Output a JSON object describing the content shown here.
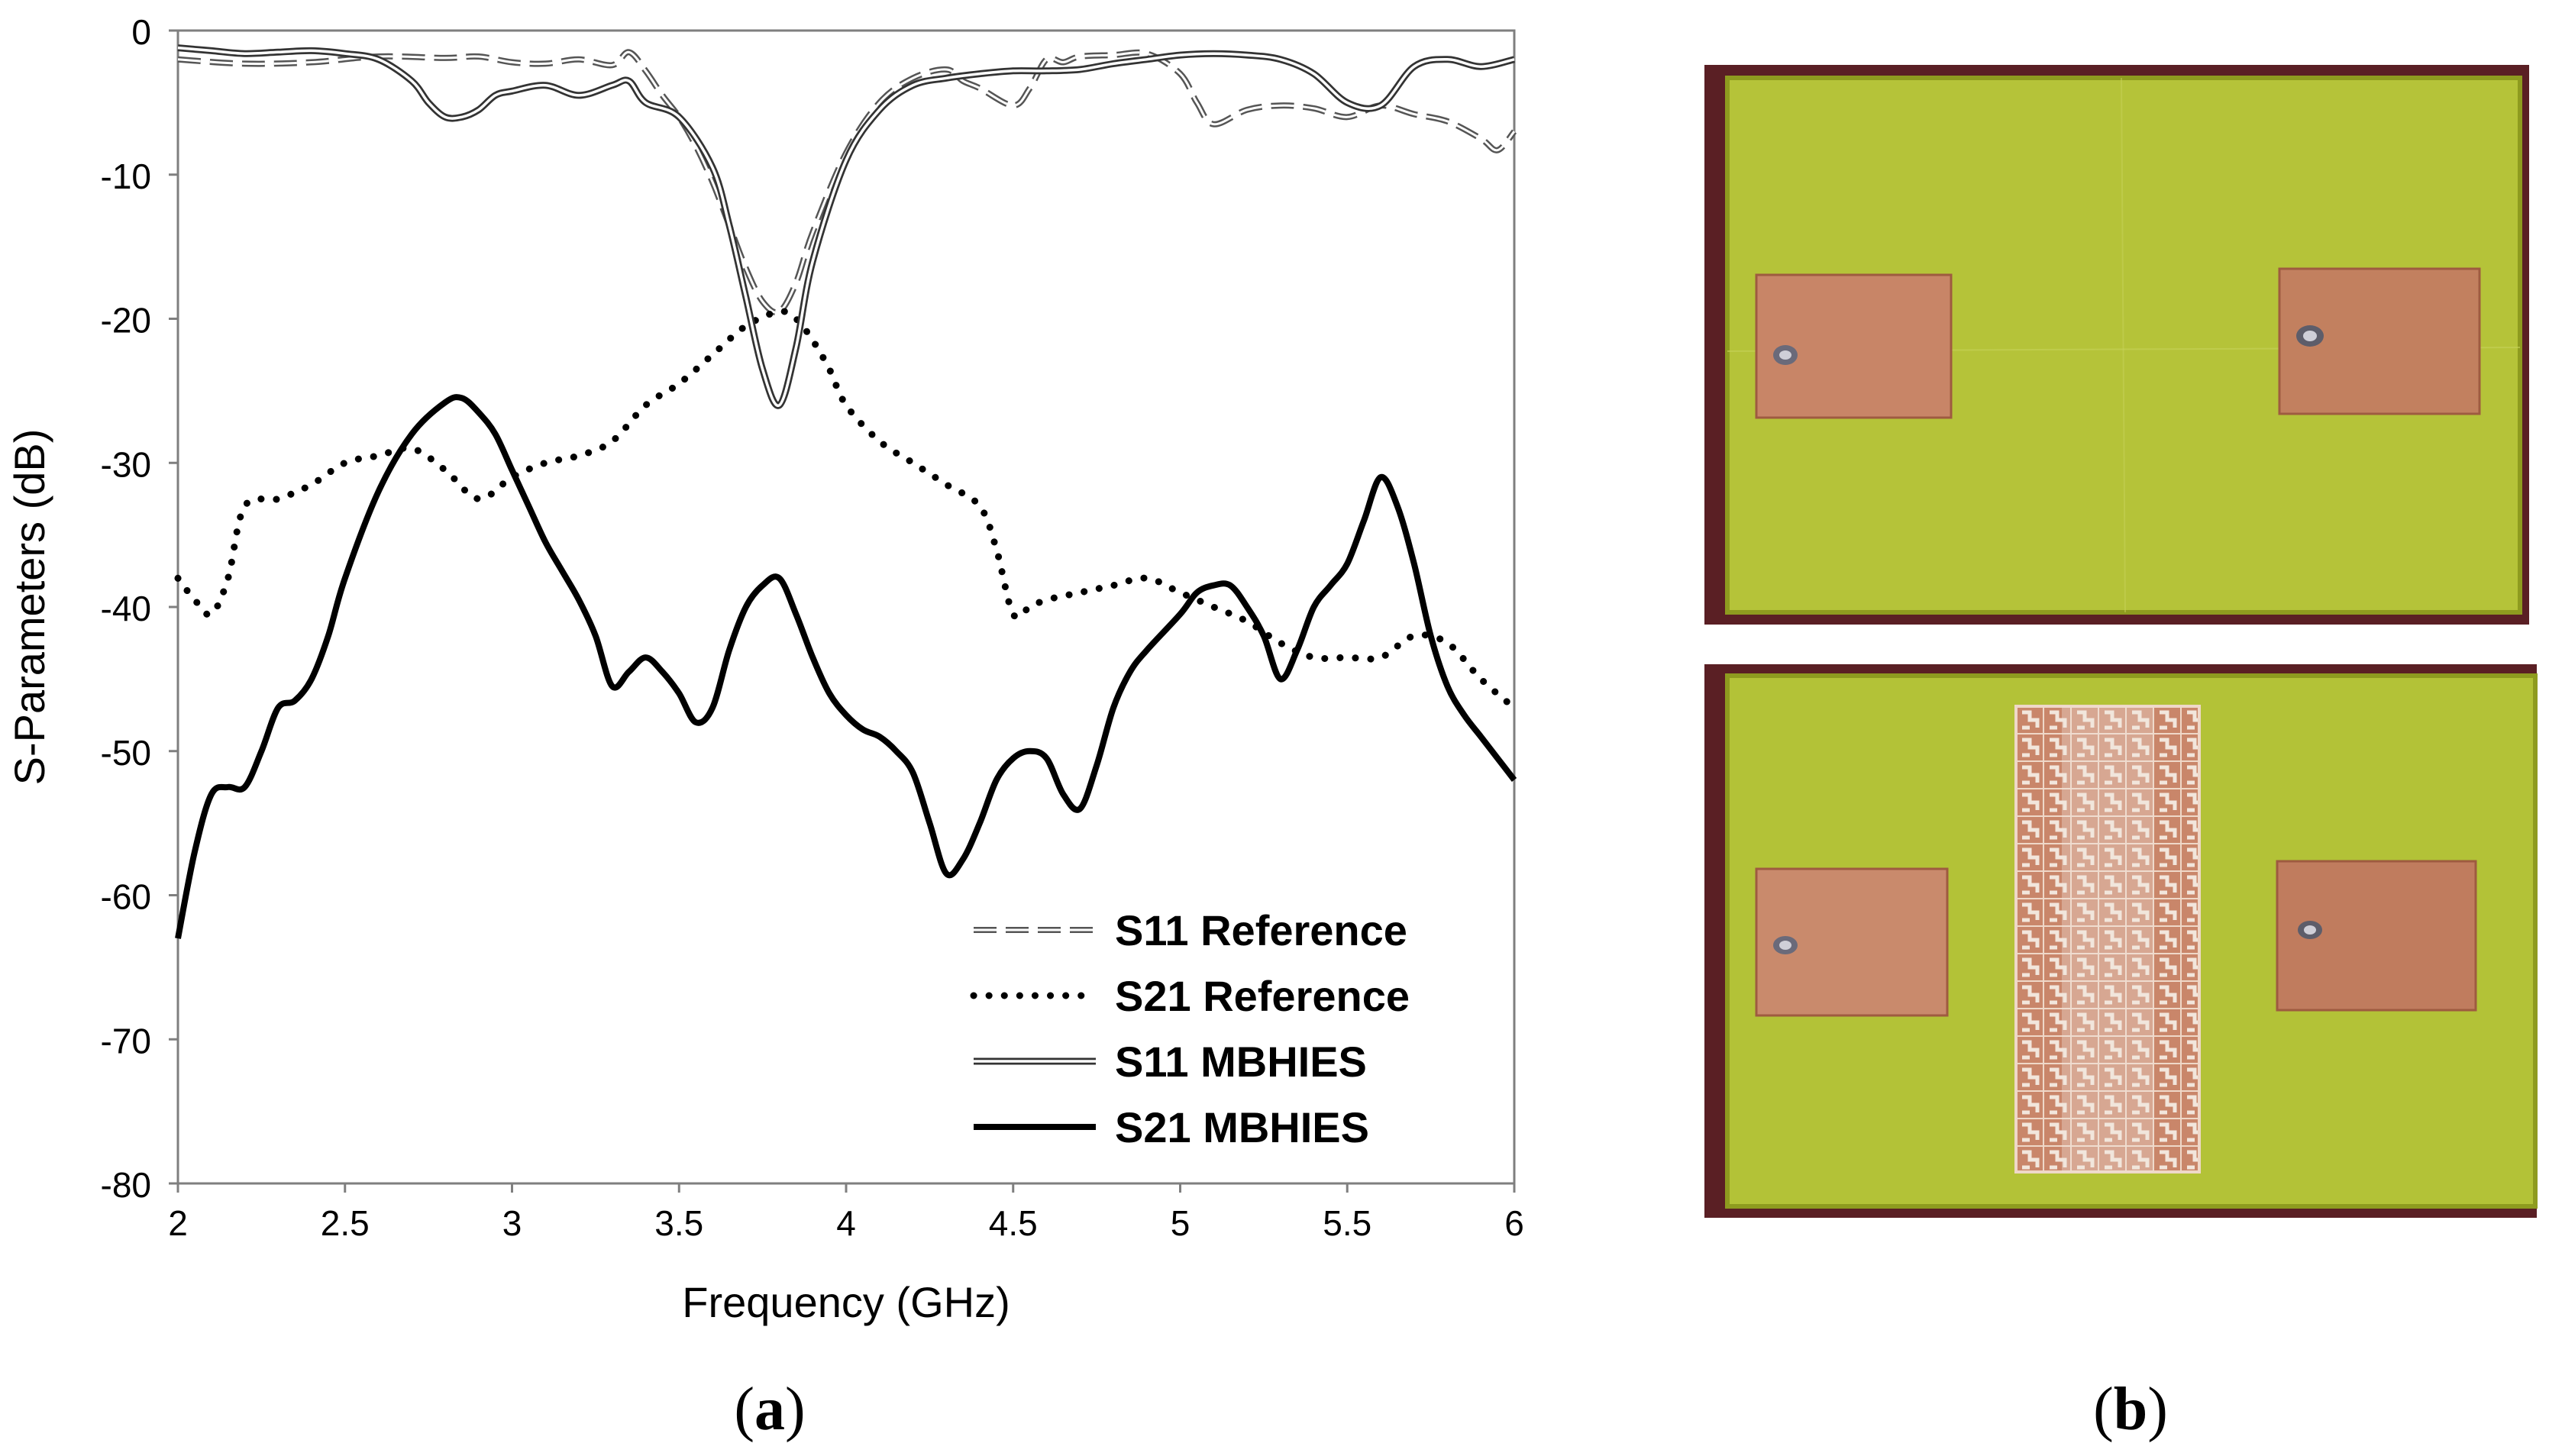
{
  "chart_data": {
    "type": "line",
    "title": "",
    "xlabel": "Frequency (GHz)",
    "ylabel": "S-Parameters (dB)",
    "xlim": [
      2,
      6
    ],
    "ylim": [
      -80,
      0
    ],
    "xticks": [
      2,
      2.5,
      3,
      3.5,
      4,
      4.5,
      5,
      5.5,
      6
    ],
    "xtick_labels": [
      "2",
      "2.5",
      "3",
      "3.5",
      "4",
      "4.5",
      "5",
      "5.5",
      "6"
    ],
    "yticks": [
      0,
      -10,
      -20,
      -30,
      -40,
      -50,
      -60,
      -70,
      -80
    ],
    "ytick_labels": [
      "0",
      "-10",
      "-20",
      "-30",
      "-40",
      "-50",
      "-60",
      "-70",
      "-80"
    ],
    "grid": false,
    "legend_position": "bottom-right",
    "series": [
      {
        "name": "S11 Reference",
        "style": "dashed",
        "x": [
          2,
          2.2,
          2.4,
          2.6,
          2.8,
          2.9,
          3.0,
          3.1,
          3.2,
          3.3,
          3.35,
          3.4,
          3.45,
          3.5,
          3.55,
          3.6,
          3.65,
          3.7,
          3.75,
          3.8,
          3.85,
          3.9,
          4.0,
          4.1,
          4.2,
          4.3,
          4.35,
          4.4,
          4.5,
          4.55,
          4.6,
          4.65,
          4.7,
          4.8,
          4.9,
          5.0,
          5.05,
          5.1,
          5.2,
          5.3,
          5.4,
          5.5,
          5.6,
          5.7,
          5.8,
          5.9,
          5.95,
          6.0
        ],
        "values": [
          -2,
          -2.3,
          -2.2,
          -1.8,
          -1.9,
          -1.8,
          -2.2,
          -2.3,
          -2.0,
          -2.4,
          -1.5,
          -2.8,
          -4.5,
          -6,
          -8,
          -10.5,
          -13.5,
          -16.5,
          -18.8,
          -19.5,
          -17.5,
          -14,
          -8.5,
          -5,
          -3.3,
          -2.7,
          -3.5,
          -4,
          -5.2,
          -4,
          -2,
          -2.2,
          -1.8,
          -1.7,
          -1.6,
          -3,
          -5,
          -6.5,
          -5.5,
          -5.2,
          -5.4,
          -6,
          -5.2,
          -5.8,
          -6.3,
          -7.5,
          -8.3,
          -7
        ]
      },
      {
        "name": "S21 Reference",
        "style": "dotted",
        "x": [
          2,
          2.05,
          2.1,
          2.15,
          2.2,
          2.3,
          2.4,
          2.5,
          2.6,
          2.7,
          2.8,
          2.9,
          3.0,
          3.1,
          3.2,
          3.3,
          3.4,
          3.5,
          3.6,
          3.7,
          3.8,
          3.85,
          3.9,
          3.95,
          4.0,
          4.1,
          4.2,
          4.3,
          4.4,
          4.45,
          4.5,
          4.55,
          4.6,
          4.7,
          4.8,
          4.9,
          5.0,
          5.1,
          5.2,
          5.3,
          5.4,
          5.5,
          5.6,
          5.7,
          5.8,
          5.9,
          6.0
        ],
        "values": [
          -38,
          -39.5,
          -40.5,
          -38,
          -33,
          -32.5,
          -31.5,
          -30,
          -29.5,
          -29,
          -30.5,
          -32.5,
          -31,
          -30,
          -29.5,
          -28.5,
          -26,
          -24.5,
          -22.5,
          -20.5,
          -19.5,
          -20,
          -21.5,
          -23.5,
          -26,
          -28.5,
          -30,
          -31.5,
          -33,
          -36,
          -40.5,
          -40,
          -39.5,
          -39,
          -38.5,
          -38,
          -39,
          -40,
          -41,
          -42.5,
          -43.5,
          -43.5,
          -43.5,
          -42,
          -42.5,
          -45,
          -47
        ]
      },
      {
        "name": "S11 MBHIES",
        "style": "double",
        "x": [
          2,
          2.1,
          2.2,
          2.3,
          2.4,
          2.5,
          2.6,
          2.7,
          2.75,
          2.8,
          2.85,
          2.9,
          2.95,
          3.0,
          3.1,
          3.2,
          3.3,
          3.35,
          3.4,
          3.5,
          3.6,
          3.65,
          3.7,
          3.75,
          3.8,
          3.85,
          3.9,
          4.0,
          4.1,
          4.2,
          4.3,
          4.4,
          4.5,
          4.6,
          4.7,
          4.8,
          4.9,
          5.0,
          5.1,
          5.2,
          5.3,
          5.4,
          5.5,
          5.6,
          5.7,
          5.8,
          5.9,
          6.0
        ],
        "values": [
          -1.2,
          -1.4,
          -1.6,
          -1.5,
          -1.4,
          -1.6,
          -2,
          -3.5,
          -5,
          -6,
          -6,
          -5.5,
          -4.5,
          -4.2,
          -3.8,
          -4.5,
          -3.8,
          -3.5,
          -5,
          -6,
          -9.5,
          -13.5,
          -18.5,
          -23.5,
          -26,
          -22,
          -16,
          -9,
          -5.5,
          -3.8,
          -3.3,
          -3.0,
          -2.8,
          -2.8,
          -2.7,
          -2.3,
          -2.0,
          -1.7,
          -1.6,
          -1.7,
          -2.0,
          -3.0,
          -5.0,
          -5.2,
          -2.5,
          -2.0,
          -2.5,
          -2.0
        ]
      },
      {
        "name": "S21 MBHIES",
        "style": "solid-thick",
        "x": [
          2,
          2.05,
          2.1,
          2.15,
          2.2,
          2.25,
          2.3,
          2.35,
          2.4,
          2.45,
          2.5,
          2.6,
          2.7,
          2.8,
          2.85,
          2.9,
          2.95,
          3.0,
          3.05,
          3.1,
          3.15,
          3.2,
          3.25,
          3.3,
          3.35,
          3.4,
          3.45,
          3.5,
          3.55,
          3.6,
          3.65,
          3.7,
          3.75,
          3.8,
          3.85,
          3.9,
          3.95,
          4.0,
          4.05,
          4.1,
          4.15,
          4.2,
          4.25,
          4.3,
          4.35,
          4.4,
          4.45,
          4.5,
          4.55,
          4.6,
          4.65,
          4.7,
          4.75,
          4.8,
          4.85,
          4.9,
          5.0,
          5.05,
          5.1,
          5.15,
          5.2,
          5.25,
          5.3,
          5.35,
          5.4,
          5.45,
          5.5,
          5.55,
          5.6,
          5.65,
          5.7,
          5.75,
          5.8,
          5.85,
          5.9,
          5.95,
          6.0
        ],
        "values": [
          -63,
          -57,
          -53,
          -52.5,
          -52.5,
          -50,
          -47,
          -46.5,
          -45,
          -42,
          -38,
          -32,
          -28,
          -25.8,
          -25.5,
          -26.5,
          -28,
          -30.5,
          -33,
          -35.5,
          -37.5,
          -39.5,
          -42,
          -45.5,
          -44.5,
          -43.5,
          -44.5,
          -46,
          -48,
          -47,
          -43,
          -40,
          -38.5,
          -38,
          -40.5,
          -43.5,
          -46,
          -47.5,
          -48.5,
          -49,
          -50,
          -51.5,
          -55,
          -58.5,
          -57.5,
          -55,
          -52,
          -50.5,
          -50,
          -50.5,
          -53,
          -54,
          -51,
          -47,
          -44.5,
          -43,
          -40.5,
          -39,
          -38.5,
          -38.5,
          -40,
          -42,
          -45,
          -43,
          -40,
          -38.5,
          -37,
          -34,
          -31,
          -33,
          -37,
          -42,
          -45.5,
          -47.5,
          -49,
          -50.5,
          -52
        ]
      }
    ]
  },
  "panels": {
    "a_label": "a",
    "b_label": "b"
  },
  "photos": {
    "top_board_alt": "Reference board with two copper patch antennas",
    "bottom_board_alt": "Board with MBHIES structure between two copper patch antennas"
  }
}
